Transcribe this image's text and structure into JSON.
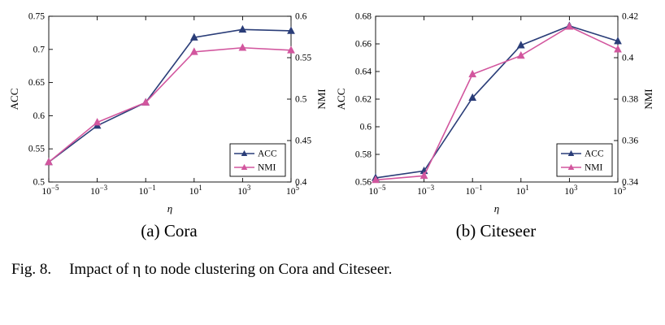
{
  "figure": {
    "caption_label": "Fig. 8.",
    "caption_text": "Impact of η to node clustering on Cora and Citeseer."
  },
  "chart_data": [
    {
      "type": "line",
      "title": "(a) Cora",
      "xlabel": "η",
      "x_scale": "log",
      "x_exponents": [
        -5,
        -3,
        -1,
        1,
        3,
        5
      ],
      "x_tick_labels": [
        "10⁻⁵",
        "10⁻³",
        "10⁻¹",
        "10¹",
        "10³",
        "10⁵"
      ],
      "left_axis": {
        "label": "ACC",
        "min": 0.5,
        "max": 0.75,
        "tick_labels": [
          "0.5",
          "0.55",
          "0.6",
          "0.65",
          "0.7",
          "0.75"
        ]
      },
      "right_axis": {
        "label": "NMI",
        "min": 0.4,
        "max": 0.6,
        "tick_labels": [
          "0.4",
          "0.45",
          "0.5",
          "0.55",
          "0.6"
        ]
      },
      "grid": false,
      "legend": {
        "position": "bottom-right",
        "entries": [
          "ACC",
          "NMI"
        ]
      },
      "series": [
        {
          "name": "ACC",
          "axis": "left",
          "marker": "triangle-up",
          "color": "#2a3d78",
          "values": [
            0.53,
            0.585,
            0.62,
            0.718,
            0.73,
            0.728
          ]
        },
        {
          "name": "NMI",
          "axis": "right",
          "marker": "triangle-up",
          "color": "#d2569e",
          "values": [
            0.424,
            0.472,
            0.496,
            0.557,
            0.562,
            0.559
          ]
        }
      ]
    },
    {
      "type": "line",
      "title": "(b) Citeseer",
      "xlabel": "η",
      "x_scale": "log",
      "x_exponents": [
        -5,
        -3,
        -1,
        1,
        3,
        5
      ],
      "x_tick_labels": [
        "10⁻⁵",
        "10⁻³",
        "10⁻¹",
        "10¹",
        "10³",
        "10⁵"
      ],
      "left_axis": {
        "label": "ACC",
        "min": 0.56,
        "max": 0.68,
        "tick_labels": [
          "0.56",
          "0.58",
          "0.6",
          "0.62",
          "0.64",
          "0.66",
          "0.68"
        ]
      },
      "right_axis": {
        "label": "NMI",
        "min": 0.34,
        "max": 0.42,
        "tick_labels": [
          "0.34",
          "0.36",
          "0.38",
          "0.4",
          "0.42"
        ]
      },
      "grid": false,
      "legend": {
        "position": "bottom-right",
        "entries": [
          "ACC",
          "NMI"
        ]
      },
      "series": [
        {
          "name": "ACC",
          "axis": "left",
          "marker": "triangle-up",
          "color": "#2a3d78",
          "values": [
            0.563,
            0.568,
            0.621,
            0.659,
            0.673,
            0.662
          ]
        },
        {
          "name": "NMI",
          "axis": "right",
          "marker": "triangle-up",
          "color": "#d2569e",
          "values": [
            0.341,
            0.343,
            0.392,
            0.401,
            0.415,
            0.404
          ]
        }
      ]
    }
  ]
}
